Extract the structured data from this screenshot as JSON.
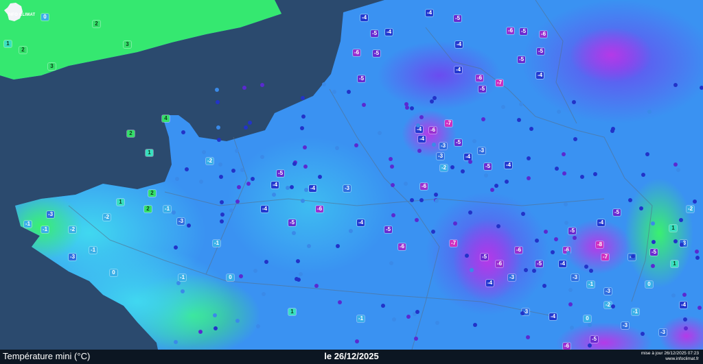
{
  "map": {
    "title": "Température mini (°C)",
    "date": "le 26/12/2025",
    "updated": "mise à jour 26/12/2025 07:23",
    "source": "www.infoclimat.fr",
    "logo_text": "INFO CLIMAT",
    "colors": {
      "sea": "#2b4a6e",
      "land_warm": "#33e86a",
      "land_mild": "#3fd0f0",
      "land_base": "#3a92f2",
      "land_cold": "#5a5ef0",
      "land_very_cold": "#9a3ee8"
    },
    "station_values": [
      2,
      1,
      3,
      2,
      3,
      1,
      2,
      0,
      -1,
      -3,
      -1,
      -2,
      -3,
      -1,
      -2,
      0,
      1,
      2,
      -3,
      -1,
      -2,
      -1,
      0,
      -1,
      -4,
      -5,
      -4,
      -5,
      -4,
      -5,
      -6,
      -5,
      -4,
      -6,
      -4,
      -5,
      -5,
      -4,
      -7,
      -6,
      -5,
      -6,
      -5,
      -4,
      -6,
      -7,
      -4,
      -3,
      -5,
      -4,
      -3,
      -4,
      -6,
      -2,
      -3,
      -5,
      -4,
      -5,
      -4,
      -3,
      -4,
      -5,
      -6,
      -4,
      -5,
      -6,
      -7,
      -5,
      -6,
      -4,
      -3,
      -5,
      -6,
      -8,
      -7,
      -5,
      -6,
      -4,
      -3,
      -1,
      -3,
      1,
      -5,
      -3,
      1,
      0,
      -2,
      -3,
      -1,
      0,
      -3,
      -4,
      -4,
      -5,
      -3,
      -2,
      -6,
      -5,
      -4,
      -3,
      4,
      2,
      1,
      -1
    ]
  }
}
